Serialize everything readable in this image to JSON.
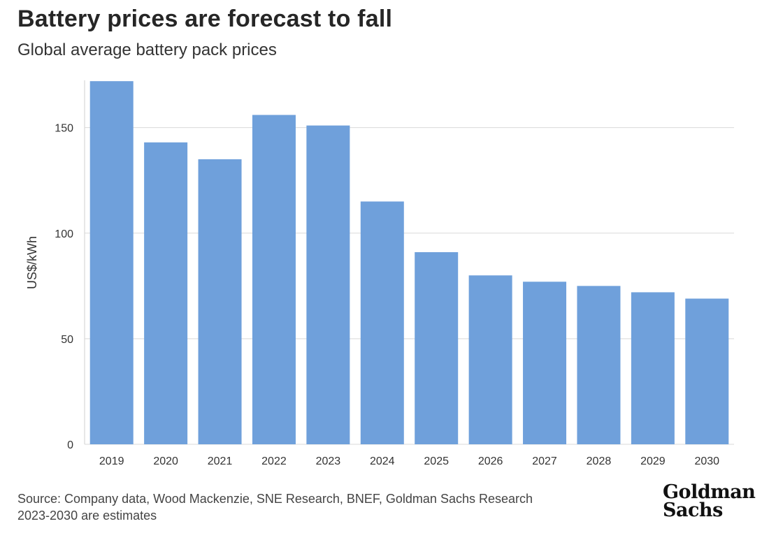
{
  "header": {
    "title": "Battery prices are forecast to fall",
    "subtitle": "Global average battery pack prices"
  },
  "footer": {
    "source_line": "Source: Company data, Wood Mackenzie, SNE Research, BNEF, Goldman Sachs Research",
    "note_line": "2023-2030 are estimates",
    "logo_line1": "Goldman",
    "logo_line2": "Sachs"
  },
  "colors": {
    "bar": "#6fa0db",
    "grid": "#d9d9d9",
    "axis": "#cfcfcf"
  },
  "chart_data": {
    "type": "bar",
    "title": "Battery prices are forecast to fall",
    "subtitle": "Global average battery pack prices",
    "xlabel": "",
    "ylabel": "US$/kWh",
    "categories": [
      "2019",
      "2020",
      "2021",
      "2022",
      "2023",
      "2024",
      "2025",
      "2026",
      "2027",
      "2028",
      "2029",
      "2030"
    ],
    "values": [
      172,
      143,
      135,
      156,
      151,
      115,
      91,
      80,
      77,
      75,
      72,
      69
    ],
    "ylim": [
      0,
      180
    ],
    "yticks": [
      0,
      50,
      100,
      150
    ],
    "grid": true
  }
}
